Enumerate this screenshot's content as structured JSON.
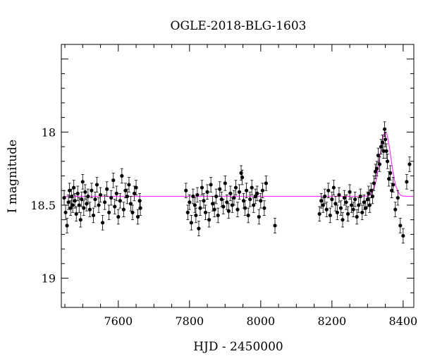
{
  "chart_data": {
    "type": "scatter",
    "title": "OGLE-2018-BLG-1603",
    "xlabel": "HJD - 2450000",
    "ylabel": "I magnitude",
    "xlim": [
      7440,
      8430
    ],
    "ylim": [
      19.2,
      17.4
    ],
    "y_inverted": true,
    "x_ticks": [
      7600,
      7800,
      8000,
      8200,
      8400
    ],
    "x_tick_labels": [
      "7600",
      "7800",
      "8000",
      "8200",
      "8400"
    ],
    "y_ticks": [
      18,
      18.5,
      19
    ],
    "y_tick_labels": [
      "18",
      "18.5",
      "19"
    ],
    "grid": false,
    "series": [
      {
        "kind": "points",
        "color": "#000000",
        "x": [
          7448,
          7452,
          7456,
          7460,
          7463,
          7466,
          7469,
          7472,
          7475,
          7478,
          7482,
          7486,
          7490,
          7494,
          7497,
          7500,
          7503,
          7507,
          7511,
          7515,
          7520,
          7525,
          7530,
          7535,
          7540,
          7545,
          7550,
          7556,
          7562,
          7568,
          7574,
          7580,
          7586,
          7590,
          7595,
          7600,
          7605,
          7610,
          7615,
          7620,
          7625,
          7630,
          7635,
          7640,
          7645,
          7650,
          7655,
          7660,
          7662,
          7790,
          7795,
          7800,
          7805,
          7810,
          7815,
          7818,
          7822,
          7826,
          7830,
          7835,
          7840,
          7845,
          7850,
          7855,
          7860,
          7865,
          7870,
          7875,
          7880,
          7885,
          7890,
          7895,
          7900,
          7905,
          7910,
          7915,
          7920,
          7925,
          7930,
          7935,
          7940,
          7945,
          7948,
          7952,
          7956,
          7960,
          7965,
          7970,
          7975,
          7980,
          7985,
          7990,
          7995,
          8000,
          8005,
          8010,
          8015,
          8040,
          8165,
          8170,
          8175,
          8180,
          8185,
          8190,
          8195,
          8200,
          8205,
          8210,
          8215,
          8220,
          8225,
          8230,
          8235,
          8240,
          8245,
          8250,
          8255,
          8260,
          8265,
          8270,
          8275,
          8280,
          8285,
          8290,
          8295,
          8300,
          8303,
          8306,
          8310,
          8314,
          8318,
          8322,
          8326,
          8330,
          8334,
          8338,
          8342,
          8345,
          8348,
          8350,
          8353,
          8356,
          8360,
          8364,
          8368,
          8372,
          8378,
          8385,
          8392,
          8400,
          8410,
          8418
        ],
        "y": [
          18.45,
          18.55,
          18.64,
          18.48,
          18.4,
          18.52,
          18.44,
          18.5,
          18.38,
          18.47,
          18.56,
          18.42,
          18.5,
          18.6,
          18.46,
          18.34,
          18.52,
          18.41,
          18.49,
          18.44,
          18.53,
          18.4,
          18.57,
          18.46,
          18.36,
          18.5,
          18.43,
          18.62,
          18.48,
          18.39,
          18.55,
          18.45,
          18.33,
          18.51,
          18.42,
          18.58,
          18.47,
          18.3,
          18.53,
          18.4,
          18.44,
          18.36,
          18.49,
          18.55,
          18.42,
          18.38,
          18.58,
          18.47,
          18.52,
          18.4,
          18.55,
          18.48,
          18.62,
          18.44,
          18.5,
          18.57,
          18.43,
          18.66,
          18.52,
          18.38,
          18.47,
          18.55,
          18.41,
          18.6,
          18.36,
          18.49,
          18.53,
          18.44,
          18.57,
          18.39,
          18.46,
          18.51,
          18.35,
          18.48,
          18.54,
          18.42,
          18.5,
          18.45,
          18.38,
          18.53,
          18.41,
          18.28,
          18.31,
          18.47,
          18.52,
          18.4,
          18.57,
          18.46,
          18.38,
          18.5,
          18.44,
          18.42,
          18.58,
          18.47,
          18.4,
          18.52,
          18.35,
          18.64,
          18.56,
          18.47,
          18.5,
          18.44,
          18.53,
          18.4,
          18.57,
          18.46,
          18.38,
          18.49,
          18.55,
          18.43,
          18.52,
          18.6,
          18.45,
          18.48,
          18.56,
          18.41,
          18.5,
          18.53,
          18.46,
          18.58,
          18.5,
          18.44,
          18.55,
          18.48,
          18.52,
          18.46,
          18.42,
          18.5,
          18.4,
          18.44,
          18.35,
          18.27,
          18.25,
          18.16,
          18.22,
          18.1,
          18.07,
          18.13,
          17.98,
          18.05,
          18.13,
          18.2,
          18.32,
          18.28,
          18.4,
          18.36,
          18.53,
          18.45,
          18.64,
          18.71,
          18.34,
          18.22
        ],
        "yerr": 0.05
      },
      {
        "kind": "model-curve",
        "color": "#ff33ff",
        "baseline": 18.44,
        "peak_t": 8350,
        "peak_mag": 18.0,
        "t_width": 22
      }
    ]
  }
}
